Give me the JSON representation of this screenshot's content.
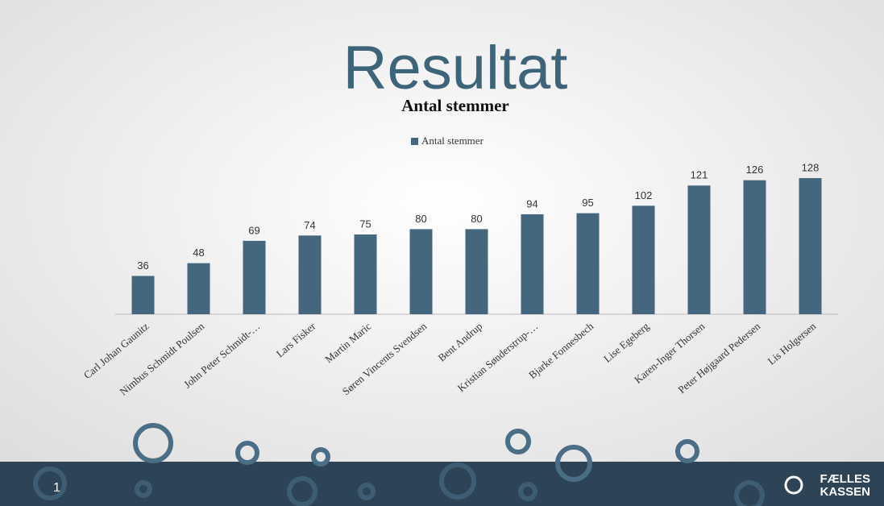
{
  "slide": {
    "title": "Resultat",
    "number": "1",
    "logo": [
      "FÆLLES",
      "KASSEN"
    ]
  },
  "chart_data": {
    "type": "bar",
    "title": "Antal stemmer",
    "categories": [
      "Carl Johan Gaunitz",
      "Nimbus Schmidt Poulsen",
      "John Peter Schmidt-…",
      "Lars Fisker",
      "Martin Maric",
      "Søren Vincents Svendsen",
      "Bent Andrup",
      "Kristian Sønderstrup-…",
      "Bjarke Fonnesbech",
      "Lise Egeberg",
      "Karen-Inger Thorsen",
      "Peter Højgaard Pedersen",
      "Lis Holgersen"
    ],
    "series": [
      {
        "name": "Antal stemmer",
        "color": "#44667e",
        "values": [
          36,
          48,
          69,
          74,
          75,
          80,
          80,
          94,
          95,
          102,
          121,
          126,
          128
        ]
      }
    ],
    "legend": "top"
  }
}
